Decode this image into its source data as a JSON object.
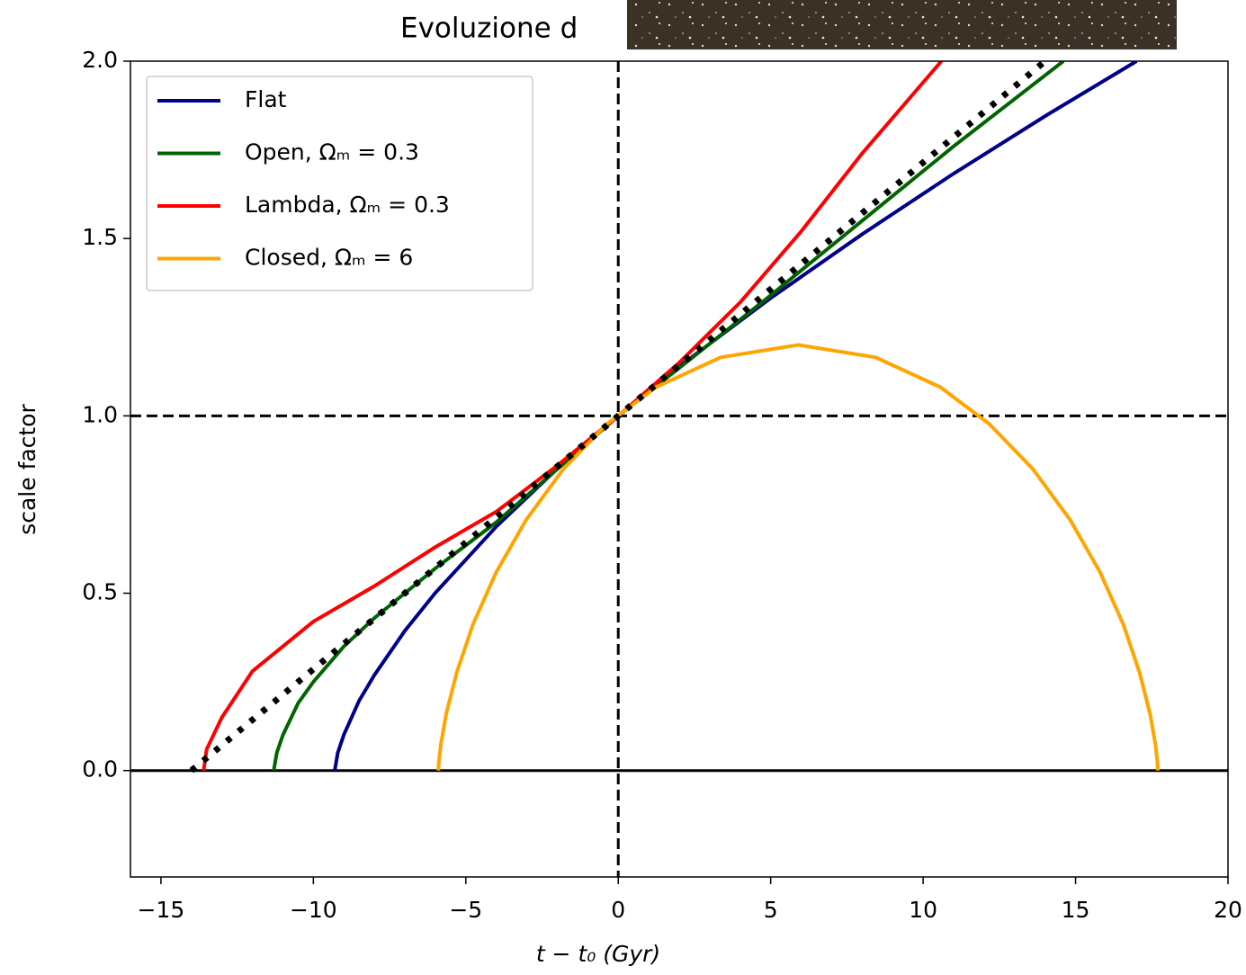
{
  "chart_data": {
    "type": "line",
    "title": "Evoluzione d",
    "xlabel": "t − t₀ (Gyr)",
    "ylabel": "scale factor",
    "xlim": [
      -16,
      20
    ],
    "ylim": [
      -0.3,
      2.0
    ],
    "xticks": [
      {
        "value": -15,
        "label": "−15"
      },
      {
        "value": -10,
        "label": "−10"
      },
      {
        "value": -5,
        "label": "−5"
      },
      0,
      5,
      10,
      15,
      20
    ],
    "yticks": [
      {
        "value": 0,
        "label": "0.0"
      },
      0.5,
      {
        "value": 1,
        "label": "1.0"
      },
      1.5,
      {
        "value": 2,
        "label": "2.0"
      }
    ],
    "grid": false,
    "legend": "upper left",
    "reference_lines": [
      {
        "axis": "x",
        "value": 0,
        "style": "dashed",
        "color": "#000000"
      },
      {
        "axis": "y",
        "value": 1,
        "style": "dashed",
        "color": "#000000"
      },
      {
        "axis": "y",
        "value": 0,
        "style": "solid",
        "color": "#000000"
      }
    ],
    "series": [
      {
        "name": "Flat",
        "color": "#00008b",
        "style": "solid",
        "x": [
          -9.3,
          -9.2,
          -9,
          -8.5,
          -8,
          -7,
          -6,
          -4,
          -2,
          0,
          2,
          5,
          8,
          11,
          14,
          17
        ],
        "values": [
          0,
          0.05,
          0.101,
          0.197,
          0.269,
          0.394,
          0.501,
          0.688,
          0.851,
          1,
          1.139,
          1.332,
          1.512,
          1.683,
          1.845,
          2.0
        ]
      },
      {
        "name": "Open, Ωₘ = 0.3",
        "color": "#006400",
        "style": "solid",
        "x": [
          -11.3,
          -11.2,
          -11,
          -10.5,
          -10,
          -9,
          -8,
          -6,
          -4,
          -2,
          0,
          2,
          5,
          8,
          11,
          14.6
        ],
        "values": [
          0,
          0.05,
          0.1,
          0.19,
          0.25,
          0.35,
          0.43,
          0.57,
          0.7,
          0.85,
          1,
          1.135,
          1.34,
          1.55,
          1.76,
          2.0
        ]
      },
      {
        "name": "Lambda, Ωₘ = 0.3",
        "color": "#ff0000",
        "style": "solid",
        "x": [
          -13.6,
          -13.5,
          -13,
          -12,
          -10,
          -8,
          -6,
          -4,
          -2,
          0,
          2,
          4,
          6,
          8,
          10.6
        ],
        "values": [
          0,
          0.06,
          0.15,
          0.28,
          0.42,
          0.52,
          0.63,
          0.73,
          0.86,
          1,
          1.15,
          1.32,
          1.52,
          1.74,
          2.0
        ]
      },
      {
        "name": "Closed, Ωₘ = 6",
        "color": "#ffa500",
        "style": "solid",
        "x": [
          -5.9,
          -5.89,
          -5.82,
          -5.64,
          -5.3,
          -4.77,
          -4.01,
          -3.02,
          -1.8,
          -0.37,
          1.24,
          3.36,
          5.9,
          8.44,
          10.56,
          12.17,
          13.6,
          14.82,
          15.81,
          16.57,
          17.1,
          17.44,
          17.62,
          17.69,
          17.7
        ],
        "values": [
          0,
          0.019,
          0.073,
          0.161,
          0.276,
          0.411,
          0.558,
          0.707,
          0.85,
          0.977,
          1.081,
          1.165,
          1.2,
          1.165,
          1.081,
          0.977,
          0.85,
          0.707,
          0.558,
          0.411,
          0.276,
          0.161,
          0.073,
          0.019,
          0
        ]
      },
      {
        "color": "#000000",
        "style": "dotted",
        "x": [
          -14,
          14
        ],
        "values": [
          0,
          2
        ]
      }
    ]
  }
}
